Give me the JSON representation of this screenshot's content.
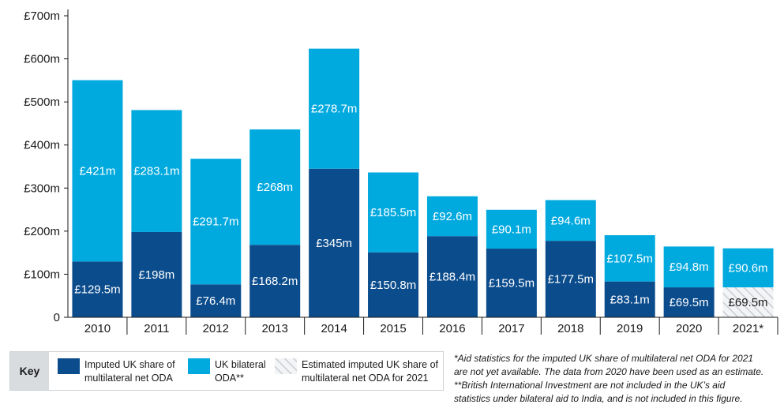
{
  "chart_data": {
    "type": "bar",
    "stacked": true,
    "categories": [
      "2010",
      "2011",
      "2012",
      "2013",
      "2014",
      "2015",
      "2016",
      "2017",
      "2018",
      "2019",
      "2020",
      "2021*"
    ],
    "series": [
      {
        "name": "Imputed UK share of multilateral net ODA",
        "color": "#0b4c8c",
        "values": [
          129.5,
          198,
          76.4,
          168.2,
          345,
          150.8,
          188.4,
          159.5,
          177.5,
          83.1,
          69.5,
          69.5
        ],
        "labels": [
          "£129.5m",
          "£198m",
          "£76.4m",
          "£168.2m",
          "£345m",
          "£150.8m",
          "£188.4m",
          "£159.5m",
          "£177.5m",
          "£83.1m",
          "£69.5m",
          "£69.5m"
        ],
        "estimated": [
          false,
          false,
          false,
          false,
          false,
          false,
          false,
          false,
          false,
          false,
          false,
          true
        ]
      },
      {
        "name": "UK bilateral ODA**",
        "color": "#00a9de",
        "values": [
          421,
          283.1,
          291.7,
          268,
          278.7,
          185.5,
          92.6,
          90.1,
          94.6,
          107.5,
          94.8,
          90.6
        ],
        "labels": [
          "£421m",
          "£283.1m",
          "£291.7m",
          "£268m",
          "£278.7m",
          "£185.5m",
          "£92.6m",
          "£90.1m",
          "£94.6m",
          "£107.5m",
          "£94.8m",
          "£90.6m"
        ]
      }
    ],
    "ylim": [
      0,
      700
    ],
    "yticks": [
      0,
      100,
      200,
      300,
      400,
      500,
      600,
      700
    ],
    "ytick_labels": [
      "0",
      "£100m",
      "£200m",
      "£300m",
      "£400m",
      "£500m",
      "£600m",
      "£700m"
    ],
    "grid": false
  },
  "key": {
    "title": "Key",
    "items": [
      {
        "label_line1": "Imputed UK share of",
        "label_line2": "multilateral net ODA",
        "color": "#0b4c8c"
      },
      {
        "label_line1": "UK bilateral",
        "label_line2": "ODA**",
        "color": "#00a9de"
      },
      {
        "label_line1": "Estimated imputed UK share of",
        "label_line2": "multilateral net ODA for 2021",
        "color": "hatched"
      }
    ]
  },
  "notes": {
    "line1": "*Aid statistics for the imputed UK share of multilateral net ODA for 2021",
    "line2": "are not yet available. The data from 2020 have been used as an estimate.",
    "line3": "**British International Investment are not included in the UK’s aid",
    "line4": "statistics under bilateral aid to India, and is not included in this figure."
  }
}
